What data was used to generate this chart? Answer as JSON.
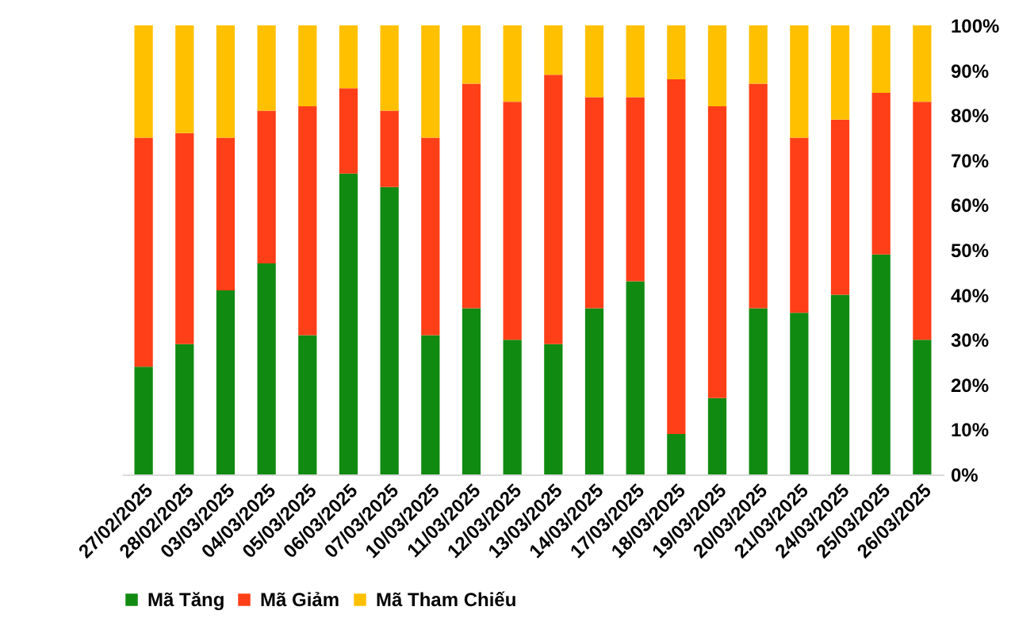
{
  "chart_data": {
    "type": "bar",
    "stacked": true,
    "categories": [
      "27/02/2025",
      "28/02/2025",
      "03/03/2025",
      "04/03/2025",
      "05/03/2025",
      "06/03/2025",
      "07/03/2025",
      "10/03/2025",
      "11/03/2025",
      "12/03/2025",
      "13/03/2025",
      "14/03/2025",
      "17/03/2025",
      "18/03/2025",
      "19/03/2025",
      "20/03/2025",
      "21/03/2025",
      "24/03/2025",
      "25/03/2025",
      "26/03/2025"
    ],
    "series": [
      {
        "name": "Mã Tăng",
        "color": "#118a11",
        "values": [
          24,
          29,
          41,
          47,
          31,
          67,
          64,
          31,
          37,
          30,
          29,
          37,
          43,
          9,
          17,
          37,
          36,
          40,
          49,
          30
        ]
      },
      {
        "name": "Mã Giảm",
        "color": "#ff3f17",
        "values": [
          51,
          47,
          34,
          34,
          51,
          19,
          17,
          44,
          50,
          53,
          60,
          47,
          41,
          79,
          65,
          50,
          39,
          39,
          36,
          53
        ]
      },
      {
        "name": "Mã Tham Chiếu",
        "color": "#ffc000",
        "values": [
          25,
          24,
          25,
          19,
          18,
          14,
          19,
          25,
          13,
          17,
          11,
          16,
          16,
          12,
          18,
          13,
          25,
          21,
          15,
          17
        ]
      }
    ],
    "ylim": [
      0,
      100
    ],
    "yticks": [
      {
        "value": 0,
        "label": "0%"
      },
      {
        "value": 10,
        "label": "10%"
      },
      {
        "value": 20,
        "label": "20%"
      },
      {
        "value": 30,
        "label": "30%"
      },
      {
        "value": 40,
        "label": "40%"
      },
      {
        "value": 50,
        "label": "50%"
      },
      {
        "value": 60,
        "label": "60%"
      },
      {
        "value": 70,
        "label": "70%"
      },
      {
        "value": 80,
        "label": "80%"
      },
      {
        "value": 90,
        "label": "90%"
      },
      {
        "value": 100,
        "label": "100%"
      }
    ],
    "legend": "bottom"
  }
}
